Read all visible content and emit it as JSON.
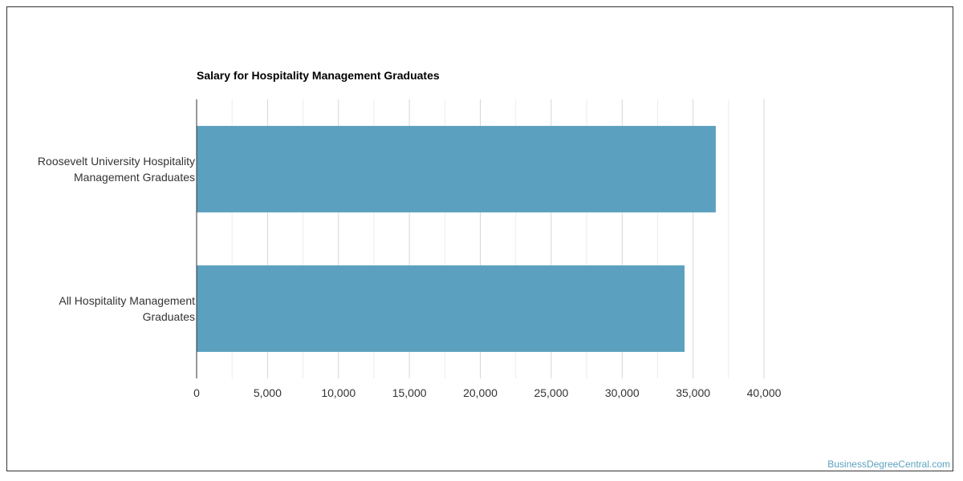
{
  "chart_data": {
    "type": "bar",
    "orientation": "horizontal",
    "title": "Salary for Hospitality Management Graduates",
    "categories": [
      [
        "Roosevelt University Hospitality",
        "Management Graduates"
      ],
      [
        "All Hospitality Management",
        "Graduates"
      ]
    ],
    "values": [
      36600,
      34400
    ],
    "xlim": [
      0,
      40000
    ],
    "x_ticks": [
      0,
      5000,
      10000,
      15000,
      20000,
      25000,
      30000,
      35000,
      40000
    ],
    "x_tick_labels": [
      "0",
      "5,000",
      "10,000",
      "15,000",
      "20,000",
      "25,000",
      "30,000",
      "35,000",
      "40,000"
    ],
    "grid": true,
    "legend": "none",
    "bar_color": "#5ba1bf"
  },
  "footer": {
    "credit": "BusinessDegreeCentral.com"
  }
}
